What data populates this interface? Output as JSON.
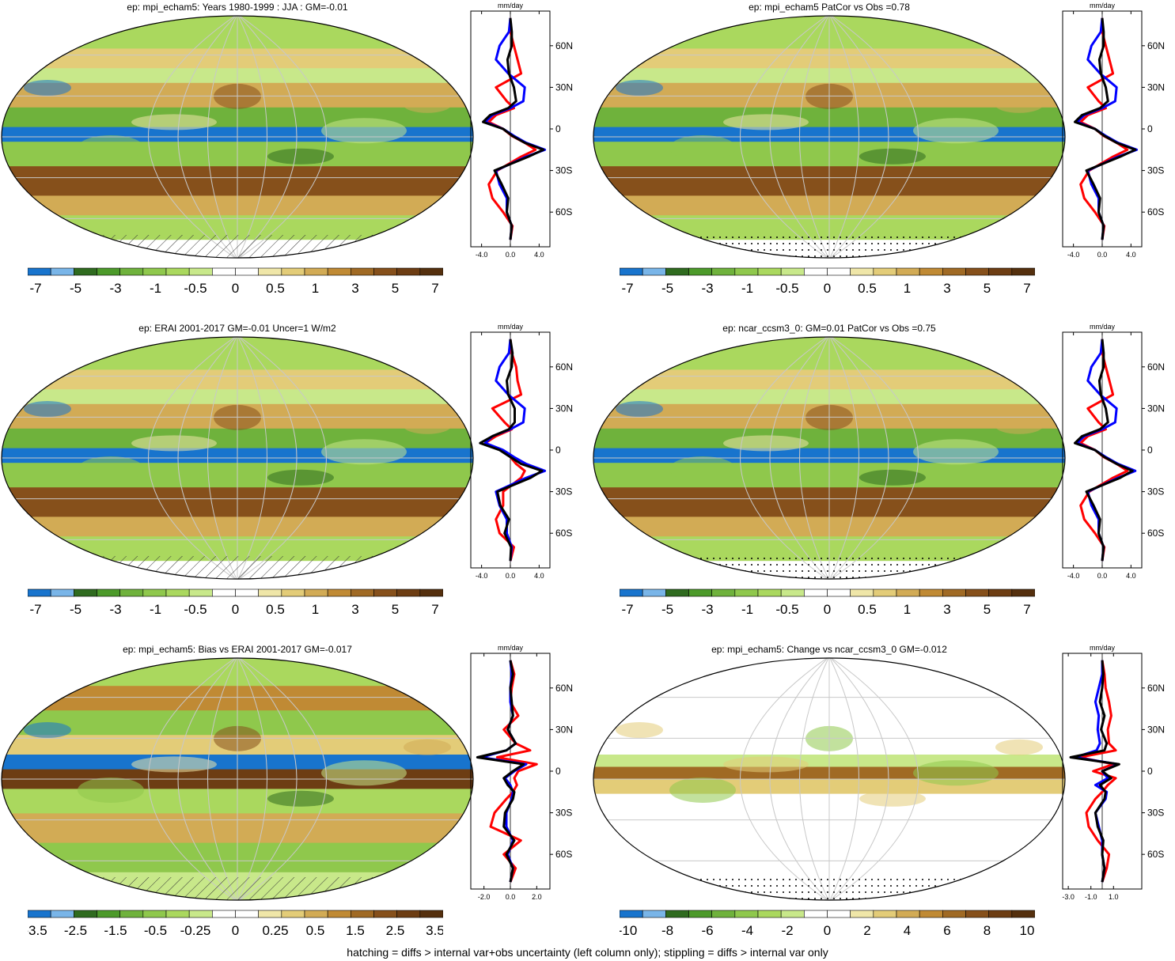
{
  "colors": {
    "scale": [
      "#1874cd",
      "#79b5e8",
      "#2f6b1f",
      "#4c9a2a",
      "#6fb23c",
      "#8fc84c",
      "#aad85e",
      "#c8e88a",
      "#ffffff",
      "#ffffff",
      "#efe6a8",
      "#e3cc78",
      "#d2ab55",
      "#c08a34",
      "#a06a24",
      "#86501b",
      "#6d3d13",
      "#55300e"
    ],
    "obs_line": "#000000",
    "model1_line": "#0000ff",
    "model2_line": "#ff0000"
  },
  "panels": [
    {
      "title": "ep: mpi_echam5: Years 1980-1999 : JJA : GM=-0.01",
      "colorbar_labels": [
        "-7",
        "-5",
        "-3",
        "-1",
        "-0.5",
        "0",
        "0.5",
        "1",
        "3",
        "5",
        "7"
      ],
      "profile_xticks": [
        "-4.0",
        "0.0",
        "4.0"
      ],
      "map_style": "clim",
      "hatch": true,
      "stipple": false
    },
    {
      "title": "ep: mpi_echam5 PatCor vs Obs =0.78",
      "colorbar_labels": [
        "-7",
        "-5",
        "-3",
        "-1",
        "-0.5",
        "0",
        "0.5",
        "1",
        "3",
        "5",
        "7"
      ],
      "profile_xticks": [
        "-4.0",
        "0.0",
        "4.0"
      ],
      "map_style": "clim",
      "hatch": false,
      "stipple": true
    },
    {
      "title": "ep: ERAI 2001-2017 GM=-0.01 Uncer=1 W/m2",
      "colorbar_labels": [
        "-7",
        "-5",
        "-3",
        "-1",
        "-0.5",
        "0",
        "0.5",
        "1",
        "3",
        "5",
        "7"
      ],
      "profile_xticks": [
        "-4.0",
        "0.0",
        "4.0"
      ],
      "map_style": "clim",
      "hatch": true,
      "stipple": false
    },
    {
      "title": "ep: ncar_ccsm3_0: GM=0.01 PatCor vs Obs =0.75",
      "colorbar_labels": [
        "-7",
        "-5",
        "-3",
        "-1",
        "-0.5",
        "0",
        "0.5",
        "1",
        "3",
        "5",
        "7"
      ],
      "profile_xticks": [
        "-4.0",
        "0.0",
        "4.0"
      ],
      "map_style": "clim",
      "hatch": false,
      "stipple": true
    },
    {
      "title": "ep: mpi_echam5: Bias vs ERAI 2001-2017 GM=-0.017",
      "colorbar_labels": [
        "-3.5",
        "-2.5",
        "-1.5",
        "-0.5",
        "-0.25",
        "0",
        "0.25",
        "0.5",
        "1.5",
        "2.5",
        "3.5"
      ],
      "profile_xticks": [
        "-2.0",
        "0.0",
        "2.0"
      ],
      "map_style": "bias",
      "hatch": true,
      "stipple": false
    },
    {
      "title": "ep: mpi_echam5: Change vs ncar_ccsm3_0 GM=-0.012",
      "colorbar_labels": [
        "-10",
        "-8",
        "-6",
        "-4",
        "-2",
        "0",
        "2",
        "4",
        "6",
        "8",
        "10"
      ],
      "profile_xticks": [
        "-3.0",
        "-1.0",
        "1.0"
      ],
      "map_style": "change",
      "hatch": false,
      "stipple": true
    }
  ],
  "profile_unit": "mm/day",
  "lat_labels": [
    "60N",
    "30N",
    "0",
    "30S",
    "60S"
  ],
  "footer": "hatching = diffs > internal var+obs uncertainty (left column only); stippling = diffs > internal var only",
  "chart_data": [
    {
      "type": "line",
      "title": "ep: mpi_echam5: Years 1980-1999 : JJA : GM=-0.01",
      "xlabel": "mm/day",
      "y_lat": [
        -80,
        -70,
        -60,
        -50,
        -40,
        -30,
        -20,
        -15,
        -10,
        -5,
        0,
        5,
        10,
        15,
        20,
        30,
        40,
        50,
        60,
        70,
        80
      ],
      "series": [
        {
          "values": [
            0,
            0.2,
            -0.5,
            -0.3,
            -1.2,
            -2.2,
            2.5,
            4.6,
            2.0,
            0.3,
            -1.0,
            -3.8,
            -2.8,
            -0.3,
            0.8,
            0.5,
            -0.2,
            -0.4,
            0.2,
            0.2,
            0
          ]
        },
        {
          "values": [
            0,
            0.2,
            -0.5,
            -0.5,
            -1.5,
            -2.0,
            2.2,
            4.8,
            2.2,
            0.5,
            -1.0,
            -3.5,
            -2.5,
            0.0,
            1.8,
            2.0,
            -0.3,
            -2.0,
            -1.5,
            -0.2,
            0
          ]
        },
        {
          "values": [
            0,
            0.3,
            -1.0,
            -2.5,
            -3.0,
            -1.8,
            1.5,
            3.5,
            2.0,
            0.2,
            -1.0,
            -3.0,
            -2.0,
            0.5,
            -0.5,
            -2.0,
            1.5,
            1.0,
            0.5,
            0.0,
            0
          ]
        }
      ]
    },
    {
      "type": "line",
      "title": "ep: mpi_echam5 PatCor vs Obs =0.78",
      "xlabel": "mm/day",
      "y_lat": [
        -80,
        -70,
        -60,
        -50,
        -40,
        -30,
        -20,
        -15,
        -10,
        -5,
        0,
        5,
        10,
        15,
        20,
        30,
        40,
        50,
        60,
        70,
        80
      ],
      "series": [
        {
          "values": [
            0,
            0.2,
            -0.5,
            -0.3,
            -1.2,
            -2.2,
            2.5,
            4.6,
            2.0,
            0.3,
            -1.0,
            -3.8,
            -2.8,
            -0.3,
            0.8,
            0.5,
            -0.2,
            -0.4,
            0.2,
            0.2,
            0
          ]
        },
        {
          "values": [
            0,
            0.2,
            -0.5,
            -0.5,
            -1.5,
            -2.0,
            2.2,
            4.8,
            2.2,
            0.5,
            -1.0,
            -3.5,
            -2.5,
            0.0,
            1.8,
            2.0,
            -0.3,
            -2.0,
            -1.5,
            -0.2,
            0
          ]
        },
        {
          "values": [
            0,
            0.3,
            -1.0,
            -2.5,
            -3.0,
            -1.8,
            1.5,
            3.5,
            2.0,
            0.2,
            -1.0,
            -3.0,
            -2.0,
            0.5,
            -0.5,
            -2.0,
            1.5,
            1.0,
            0.5,
            0.0,
            0
          ]
        }
      ]
    },
    {
      "type": "line",
      "title": "ep: ERAI 2001-2017 GM=-0.01 Uncer=1 W/m2",
      "xlabel": "mm/day",
      "y_lat": [
        -80,
        -70,
        -60,
        -50,
        -40,
        -30,
        -20,
        -15,
        -10,
        -5,
        0,
        5,
        10,
        15,
        20,
        30,
        40,
        50,
        60,
        70,
        80
      ],
      "series": [
        {
          "values": [
            0,
            0.1,
            -0.8,
            -0.2,
            -1.4,
            -1.8,
            2.8,
            4.4,
            1.5,
            0.0,
            -1.5,
            -4.2,
            -2.5,
            -0.2,
            0.6,
            0.6,
            -0.3,
            -0.5,
            0.2,
            0.3,
            0
          ]
        },
        {
          "values": [
            0,
            0.2,
            -0.5,
            -0.5,
            -1.5,
            -2.0,
            2.2,
            4.8,
            2.2,
            0.5,
            -1.0,
            -3.5,
            -2.5,
            0.0,
            1.8,
            2.0,
            -0.3,
            -2.0,
            -1.5,
            -0.2,
            0
          ]
        },
        {
          "values": [
            0,
            0.5,
            -1.5,
            -2.0,
            -1.0,
            -1.0,
            1.5,
            2.0,
            0.8,
            0.0,
            -1.2,
            -3.5,
            -2.0,
            0.2,
            -0.8,
            -2.5,
            1.5,
            1.0,
            0.8,
            0.2,
            0
          ]
        }
      ]
    },
    {
      "type": "line",
      "title": "ep: ncar_ccsm3_0: GM=0.01 PatCor vs Obs =0.75",
      "xlabel": "mm/day",
      "y_lat": [
        -80,
        -70,
        -60,
        -50,
        -40,
        -30,
        -20,
        -15,
        -10,
        -5,
        0,
        5,
        10,
        15,
        20,
        30,
        40,
        50,
        60,
        70,
        80
      ],
      "series": [
        {
          "values": [
            0,
            0.2,
            -0.5,
            -0.3,
            -1.2,
            -2.2,
            2.5,
            4.2,
            2.0,
            0.3,
            -1.0,
            -3.8,
            -2.8,
            -0.3,
            0.8,
            0.5,
            -0.2,
            -0.4,
            0.2,
            0.2,
            0
          ]
        },
        {
          "values": [
            0,
            0.2,
            -0.5,
            -0.5,
            -1.5,
            -2.0,
            2.2,
            4.6,
            2.2,
            0.5,
            -1.0,
            -3.5,
            -2.5,
            0.0,
            1.8,
            2.0,
            -0.3,
            -2.0,
            -1.5,
            -0.2,
            0
          ]
        },
        {
          "values": [
            0,
            0.3,
            -1.0,
            -2.5,
            -3.0,
            -1.8,
            1.5,
            3.5,
            2.0,
            0.2,
            -1.0,
            -3.0,
            -2.0,
            0.5,
            -0.5,
            -2.0,
            1.5,
            1.0,
            0.5,
            0.0,
            0
          ]
        }
      ]
    },
    {
      "type": "line",
      "title": "ep: mpi_echam5: Bias vs ERAI 2001-2017 GM=-0.017",
      "xlabel": "mm/day",
      "y_lat": [
        -80,
        -70,
        -60,
        -50,
        -40,
        -30,
        -20,
        -15,
        -10,
        -5,
        0,
        5,
        10,
        15,
        20,
        30,
        40,
        50,
        60,
        70,
        80
      ],
      "series": [
        {
          "values": [
            0,
            0.2,
            -0.3,
            0.3,
            -0.5,
            -0.4,
            0.2,
            0.3,
            -0.2,
            -0.5,
            0.2,
            1.0,
            -2.5,
            -0.3,
            0.4,
            -0.2,
            0.2,
            0.1,
            0.0,
            0.2,
            0
          ]
        },
        {
          "values": [
            0,
            0.2,
            -0.2,
            0.2,
            -0.3,
            -0.3,
            0.1,
            0.2,
            0.0,
            -0.4,
            0.3,
            1.2,
            -2.2,
            -0.3,
            0.4,
            -0.2,
            0.2,
            0.0,
            0.0,
            0.1,
            0
          ]
        },
        {
          "values": [
            0,
            0.4,
            -0.5,
            0.8,
            -1.5,
            -1.2,
            -0.3,
            0.2,
            0.5,
            0.3,
            0.6,
            2.0,
            -1.0,
            1.5,
            0.4,
            -0.5,
            0.6,
            0.0,
            0.1,
            0.3,
            0
          ]
        }
      ]
    },
    {
      "type": "line",
      "title": "ep: mpi_echam5: Change vs ncar_ccsm3_0 GM=-0.012",
      "xlabel": "mm/day",
      "y_lat": [
        -80,
        -70,
        -60,
        -50,
        -40,
        -30,
        -20,
        -15,
        -10,
        -5,
        0,
        5,
        10,
        15,
        20,
        30,
        40,
        50,
        60,
        70,
        80
      ],
      "series": [
        {
          "values": [
            0,
            0.2,
            0.0,
            0.1,
            -0.4,
            -0.6,
            0.2,
            0.3,
            -0.2,
            0.8,
            0.0,
            1.5,
            -2.8,
            0.2,
            0.4,
            -0.1,
            0.2,
            -0.2,
            0.0,
            0.1,
            0
          ]
        },
        {
          "values": [
            0,
            0.2,
            0.0,
            0.0,
            -0.3,
            -0.6,
            0.3,
            0.4,
            -0.6,
            0.5,
            0.0,
            1.4,
            -2.4,
            -0.5,
            -0.2,
            -0.4,
            -0.3,
            -0.6,
            -0.3,
            0.0,
            0
          ]
        },
        {
          "values": [
            0,
            0.4,
            0.6,
            -0.4,
            -1.2,
            -1.4,
            -0.6,
            0.0,
            0.5,
            1.2,
            -0.8,
            1.0,
            -2.0,
            1.2,
            0.6,
            0.5,
            0.8,
            0.6,
            0.3,
            0.2,
            0
          ]
        }
      ]
    }
  ]
}
